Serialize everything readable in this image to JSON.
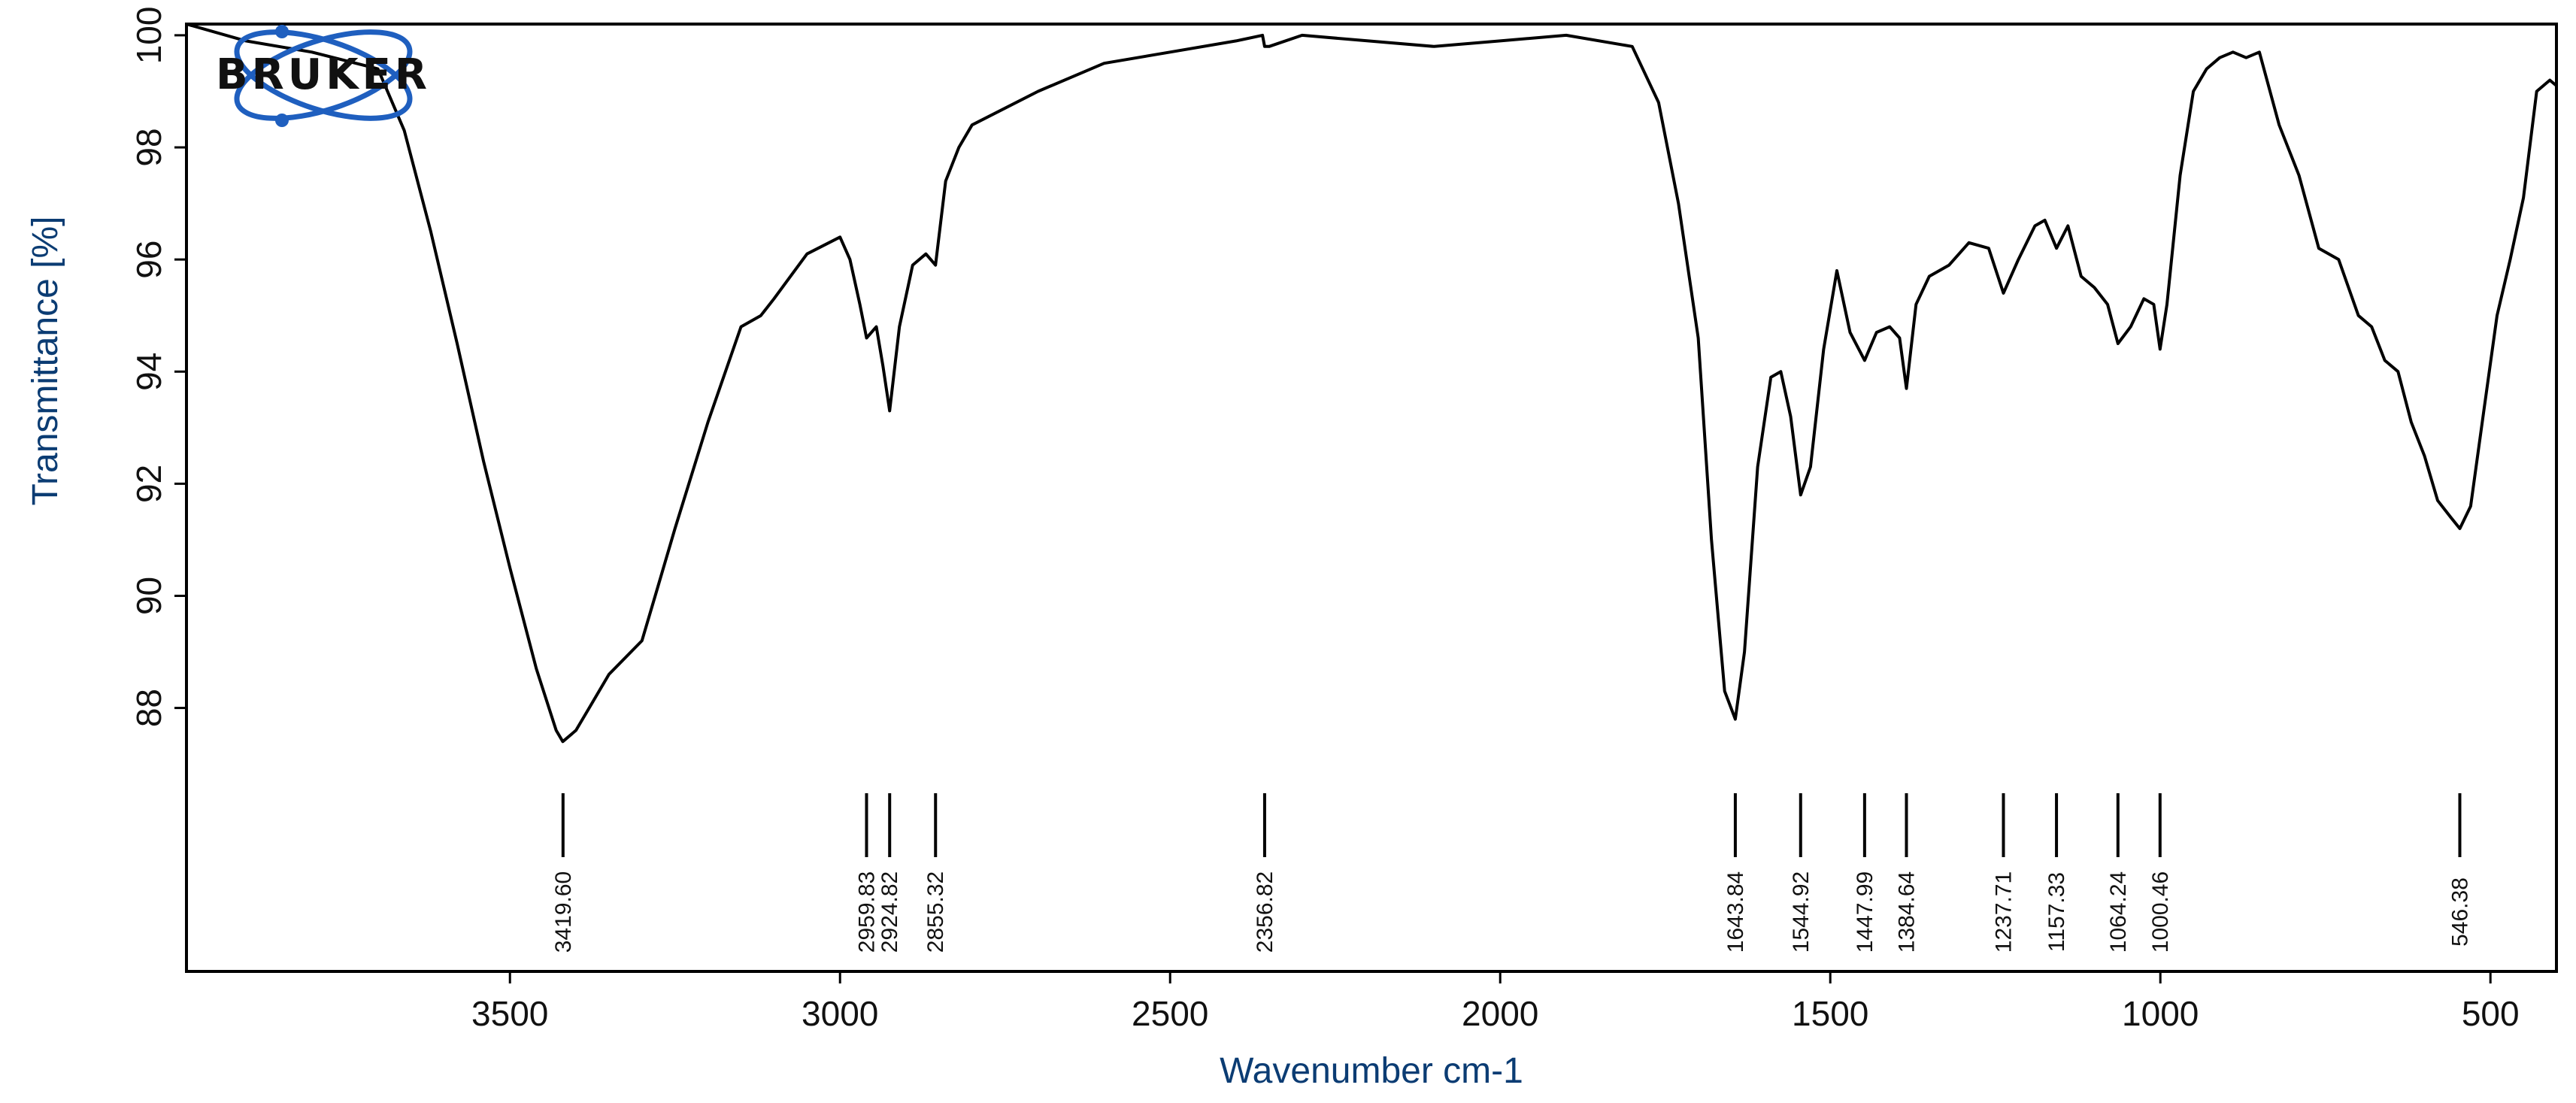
{
  "logo": {
    "text": "BRUKER",
    "ring_color": "#1f5fbf"
  },
  "chart_data": {
    "type": "line",
    "title": "",
    "xlabel": "Wavenumber cm-1",
    "ylabel": "Transmittance [%]",
    "xlim": [
      3990,
      400
    ],
    "ylim": [
      83.3,
      100.2
    ],
    "x_reversed": true,
    "grid": false,
    "x_ticks": [
      3500,
      3000,
      2500,
      2000,
      1500,
      1000,
      500
    ],
    "y_ticks": [
      88,
      90,
      92,
      94,
      96,
      98,
      100
    ],
    "line_color": "#000000",
    "series": [
      {
        "x": [
          3990,
          3900,
          3800,
          3700,
          3660,
          3620,
          3580,
          3540,
          3500,
          3460,
          3430,
          3420,
          3400,
          3380,
          3350,
          3300,
          3280,
          3250,
          3200,
          3150,
          3120,
          3100,
          3050,
          3000,
          2985,
          2970,
          2959.83,
          2945,
          2935,
          2924.82,
          2910,
          2890,
          2870,
          2855.32,
          2840,
          2820,
          2800,
          2700,
          2600,
          2500,
          2400,
          2360,
          2356.82,
          2350,
          2300,
          2200,
          2100,
          2000,
          1900,
          1800,
          1760,
          1730,
          1700,
          1680,
          1660,
          1643.84,
          1630,
          1610,
          1590,
          1575,
          1560,
          1544.92,
          1530,
          1510,
          1490,
          1470,
          1447.99,
          1430,
          1410,
          1395,
          1384.64,
          1370,
          1350,
          1320,
          1290,
          1260,
          1237.71,
          1215,
          1190,
          1175,
          1157.33,
          1140,
          1120,
          1100,
          1080,
          1064.24,
          1045,
          1025,
          1010,
          1000.46,
          990,
          970,
          950,
          930,
          910,
          890,
          870,
          850,
          820,
          790,
          760,
          730,
          700,
          680,
          660,
          640,
          620,
          600,
          580,
          560,
          546.38,
          530,
          510,
          490,
          470,
          450,
          430,
          410,
          400
        ],
        "y": [
          100.2,
          99.9,
          99.7,
          99.4,
          98.3,
          96.5,
          94.5,
          92.4,
          90.5,
          88.7,
          87.6,
          87.4,
          87.6,
          88.0,
          88.6,
          89.2,
          90.0,
          91.2,
          93.1,
          94.8,
          95.0,
          95.3,
          96.1,
          96.4,
          96.0,
          95.2,
          94.6,
          94.8,
          94.1,
          93.3,
          94.8,
          95.9,
          96.1,
          95.9,
          97.4,
          98.0,
          98.4,
          99.0,
          99.5,
          99.7,
          99.9,
          100.0,
          99.8,
          99.8,
          100.0,
          99.9,
          99.8,
          99.9,
          100.0,
          99.8,
          98.8,
          97.0,
          94.6,
          91.0,
          88.3,
          87.8,
          89.0,
          92.3,
          93.9,
          94.0,
          93.2,
          91.8,
          92.3,
          94.4,
          95.8,
          94.7,
          94.2,
          94.7,
          94.8,
          94.6,
          93.7,
          95.2,
          95.7,
          95.9,
          96.3,
          96.2,
          95.4,
          96.0,
          96.6,
          96.7,
          96.2,
          96.6,
          95.7,
          95.5,
          95.2,
          94.5,
          94.8,
          95.3,
          95.2,
          94.4,
          95.2,
          97.5,
          99.0,
          99.4,
          99.6,
          99.7,
          99.6,
          99.7,
          98.4,
          97.5,
          96.2,
          96.0,
          95.0,
          94.8,
          94.2,
          94.0,
          93.1,
          92.5,
          91.7,
          91.4,
          91.2,
          91.6,
          93.3,
          95.0,
          96.0,
          97.1,
          99.0,
          99.2,
          99.1
        ]
      }
    ],
    "peaks": [
      {
        "x": 3419.6,
        "label": "3419.60"
      },
      {
        "x": 2959.83,
        "label": "2959.83"
      },
      {
        "x": 2924.82,
        "label": "2924.82"
      },
      {
        "x": 2855.32,
        "label": "2855.32"
      },
      {
        "x": 2356.82,
        "label": "2356.82"
      },
      {
        "x": 1643.84,
        "label": "1643.84"
      },
      {
        "x": 1544.92,
        "label": "1544.92"
      },
      {
        "x": 1447.99,
        "label": "1447.99"
      },
      {
        "x": 1384.64,
        "label": "1384.64"
      },
      {
        "x": 1237.71,
        "label": "1237.71"
      },
      {
        "x": 1157.33,
        "label": "1157.33"
      },
      {
        "x": 1064.24,
        "label": "1064.24"
      },
      {
        "x": 1000.46,
        "label": "1000.46"
      },
      {
        "x": 546.38,
        "label": "546.38"
      }
    ]
  }
}
